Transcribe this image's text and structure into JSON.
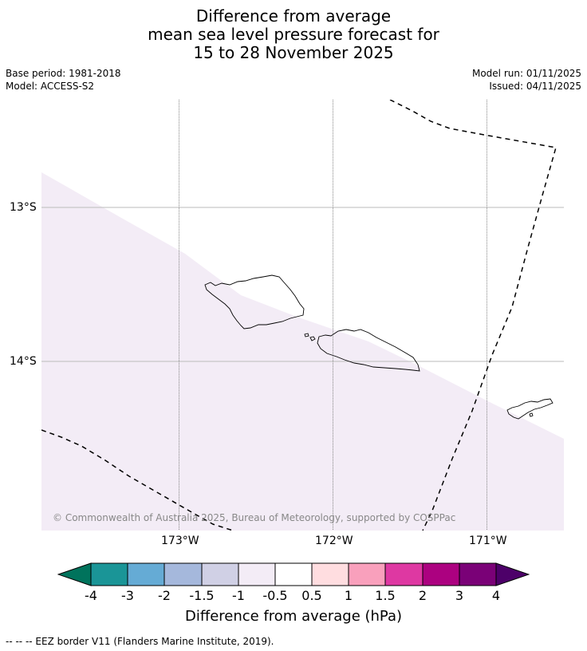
{
  "title": {
    "line1": "Difference from average",
    "line2": "mean sea level pressure forecast for",
    "line3": "15 to 28 November 2025"
  },
  "info": {
    "base_period": "Base period: 1981-2018",
    "model": "Model: ACCESS-S2",
    "model_run": "Model run: 01/11/2025",
    "issued": "Issued: 04/11/2025"
  },
  "map": {
    "lat_labels": [
      "13°S",
      "14°S"
    ],
    "lon_labels": [
      "173°W",
      "172°W",
      "171°W"
    ],
    "copyright": "© Commonwealth of Australia 2025, Bureau of Meteorology, supported by COSPPac",
    "shaded_category": "-1 to -0.5",
    "shade_color": "#f3ecf6",
    "land_outline_color": "#000000"
  },
  "colorbar": {
    "title": "Difference from average (hPa)",
    "tick_labels": [
      "-4",
      "-3",
      "-2",
      "-1.5",
      "-1",
      "-0.5",
      "0.5",
      "1",
      "1.5",
      "2",
      "3",
      "4"
    ],
    "colors": [
      "#00735c",
      "#1a9597",
      "#65abd5",
      "#a5b8dc",
      "#d0d0e5",
      "#f3ecf6",
      "#ffffff",
      "#ffdde0",
      "#f9a0bc",
      "#de38a2",
      "#ac0180",
      "#7a0177",
      "#4d0069"
    ]
  },
  "footnote": "--  --  -- EEZ border V11 (Flanders Marine Institute, 2019)."
}
